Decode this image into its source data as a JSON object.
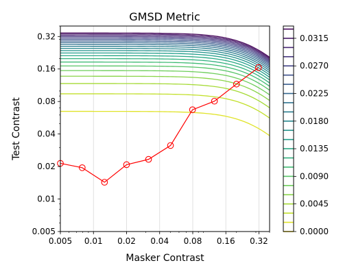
{
  "chart_data": {
    "type": "line",
    "title": "GMSD Metric",
    "xlabel": "Masker Contrast",
    "ylabel": "Test Contrast",
    "xscale": "log",
    "yscale": "log",
    "xlim": [
      0.005,
      0.4
    ],
    "ylim": [
      0.005,
      0.4
    ],
    "x_ticks": [
      0.005,
      0.01,
      0.02,
      0.04,
      0.08,
      0.16,
      0.32
    ],
    "x_tick_labels": [
      "0.005",
      "0.01",
      "0.02",
      "0.04",
      "0.08",
      "0.16",
      "0.32"
    ],
    "y_ticks": [
      0.005,
      0.01,
      0.02,
      0.04,
      0.08,
      0.16,
      0.32
    ],
    "y_tick_labels": [
      "0.005",
      "0.01",
      "0.02",
      "0.04",
      "0.08",
      "0.16",
      "0.32"
    ],
    "grid": "x-only",
    "series": [
      {
        "color": "#ff0000",
        "marker": "open-circle",
        "x": [
          0.005,
          0.0079,
          0.0126,
          0.02,
          0.0317,
          0.0502,
          0.0796,
          0.126,
          0.2,
          0.317
        ],
        "y": [
          0.0214,
          0.0195,
          0.0143,
          0.0208,
          0.0233,
          0.0313,
          0.0671,
          0.0806,
          0.116,
          0.165
        ]
      }
    ],
    "contours": {
      "colormap": "viridis",
      "min": 0.0,
      "max": 0.0335,
      "step": 0.0015,
      "description_levels_visible_in_plot": "level lines from 0.0015 to 0.033"
    },
    "colorbar": {
      "ticks": [
        0.0,
        0.0045,
        0.009,
        0.0135,
        0.018,
        0.0225,
        0.027,
        0.0315
      ],
      "tick_labels": [
        "0.0000",
        "0.0045",
        "0.0090",
        "0.0135",
        "0.0180",
        "0.0225",
        "0.0270",
        "0.0315"
      ]
    }
  }
}
